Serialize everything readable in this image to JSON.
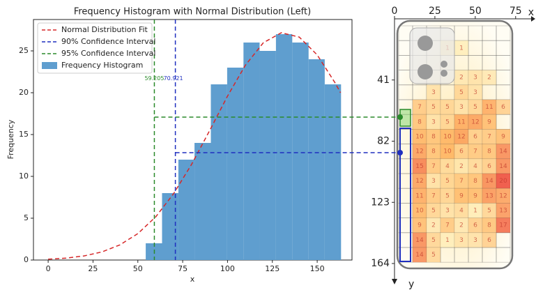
{
  "chart_data": [
    {
      "type": "histogram",
      "title": "Frequency Histogram with Normal Distribution (Left)",
      "xlabel": "x",
      "ylabel": "Frequency",
      "name": "Frequency Histogram",
      "color": "#5f9ecf",
      "bins": [
        54.4,
        63.5,
        72.6,
        81.6,
        90.7,
        99.8,
        108.9,
        117.9,
        127.0,
        136.1,
        145.2,
        154.2,
        163.3
      ],
      "values": [
        2,
        8,
        12,
        14,
        21,
        23,
        26,
        25,
        27,
        26,
        24,
        21
      ],
      "curve": {
        "name": "Normal Distribution Fit",
        "color": "#d62728",
        "x": [
          0,
          10,
          20,
          30,
          40,
          50,
          60,
          70,
          80,
          90,
          100,
          110,
          120,
          130,
          140,
          150,
          160,
          163
        ],
        "values": [
          0.1,
          0.23,
          0.49,
          0.97,
          1.81,
          3.16,
          5.17,
          7.95,
          11.45,
          15.46,
          19.6,
          23.3,
          25.98,
          27.17,
          26.65,
          24.52,
          21.17,
          20.0
        ]
      },
      "lines": [
        {
          "name": "90% Confidence Interval",
          "color": "#1f2fbf",
          "x": 70.921
        },
        {
          "name": "95% Confidence Interval",
          "color": "#2a8a2a",
          "x": 59.205
        }
      ],
      "xlim": [
        -8.2,
        169.4
      ],
      "ylim": [
        0,
        28.75
      ],
      "xticks": [
        0,
        25,
        50,
        75,
        100,
        125,
        150
      ],
      "yticks": [
        0,
        5,
        10,
        15,
        20,
        25
      ],
      "legend": "upper left"
    },
    {
      "type": "heatmap",
      "xlabel": "x",
      "ylabel": "y",
      "xlim": [
        0,
        82
      ],
      "ylim": [
        0,
        164
      ],
      "xticks": [
        0,
        25,
        50,
        75
      ],
      "yticks": [
        41,
        82,
        123,
        164
      ],
      "values": [
        [
          null,
          null,
          null,
          null,
          null,
          null,
          null,
          null
        ],
        [
          null,
          null,
          null,
          1,
          1,
          null,
          null,
          null
        ],
        [
          null,
          null,
          null,
          null,
          null,
          null,
          null,
          null
        ],
        [
          null,
          null,
          null,
          null,
          2,
          3,
          2,
          null
        ],
        [
          null,
          null,
          3,
          null,
          5,
          3,
          null,
          null
        ],
        [
          null,
          7,
          5,
          5,
          3,
          5,
          11,
          6
        ],
        [
          null,
          8,
          3,
          5,
          11,
          12,
          9,
          null
        ],
        [
          null,
          10,
          8,
          10,
          12,
          6,
          7,
          9
        ],
        [
          null,
          12,
          8,
          10,
          6,
          7,
          8,
          14
        ],
        [
          null,
          15,
          7,
          4,
          2,
          4,
          6,
          14
        ],
        [
          null,
          12,
          3,
          5,
          7,
          8,
          14,
          20
        ],
        [
          null,
          11,
          7,
          5,
          9,
          9,
          13,
          12
        ],
        [
          null,
          10,
          5,
          3,
          4,
          1,
          5,
          13
        ],
        [
          null,
          9,
          2,
          7,
          2,
          6,
          8,
          17
        ],
        [
          null,
          14,
          5,
          1,
          3,
          3,
          6,
          null
        ],
        [
          null,
          14,
          5,
          null,
          null,
          null,
          null,
          null
        ]
      ]
    }
  ]
}
